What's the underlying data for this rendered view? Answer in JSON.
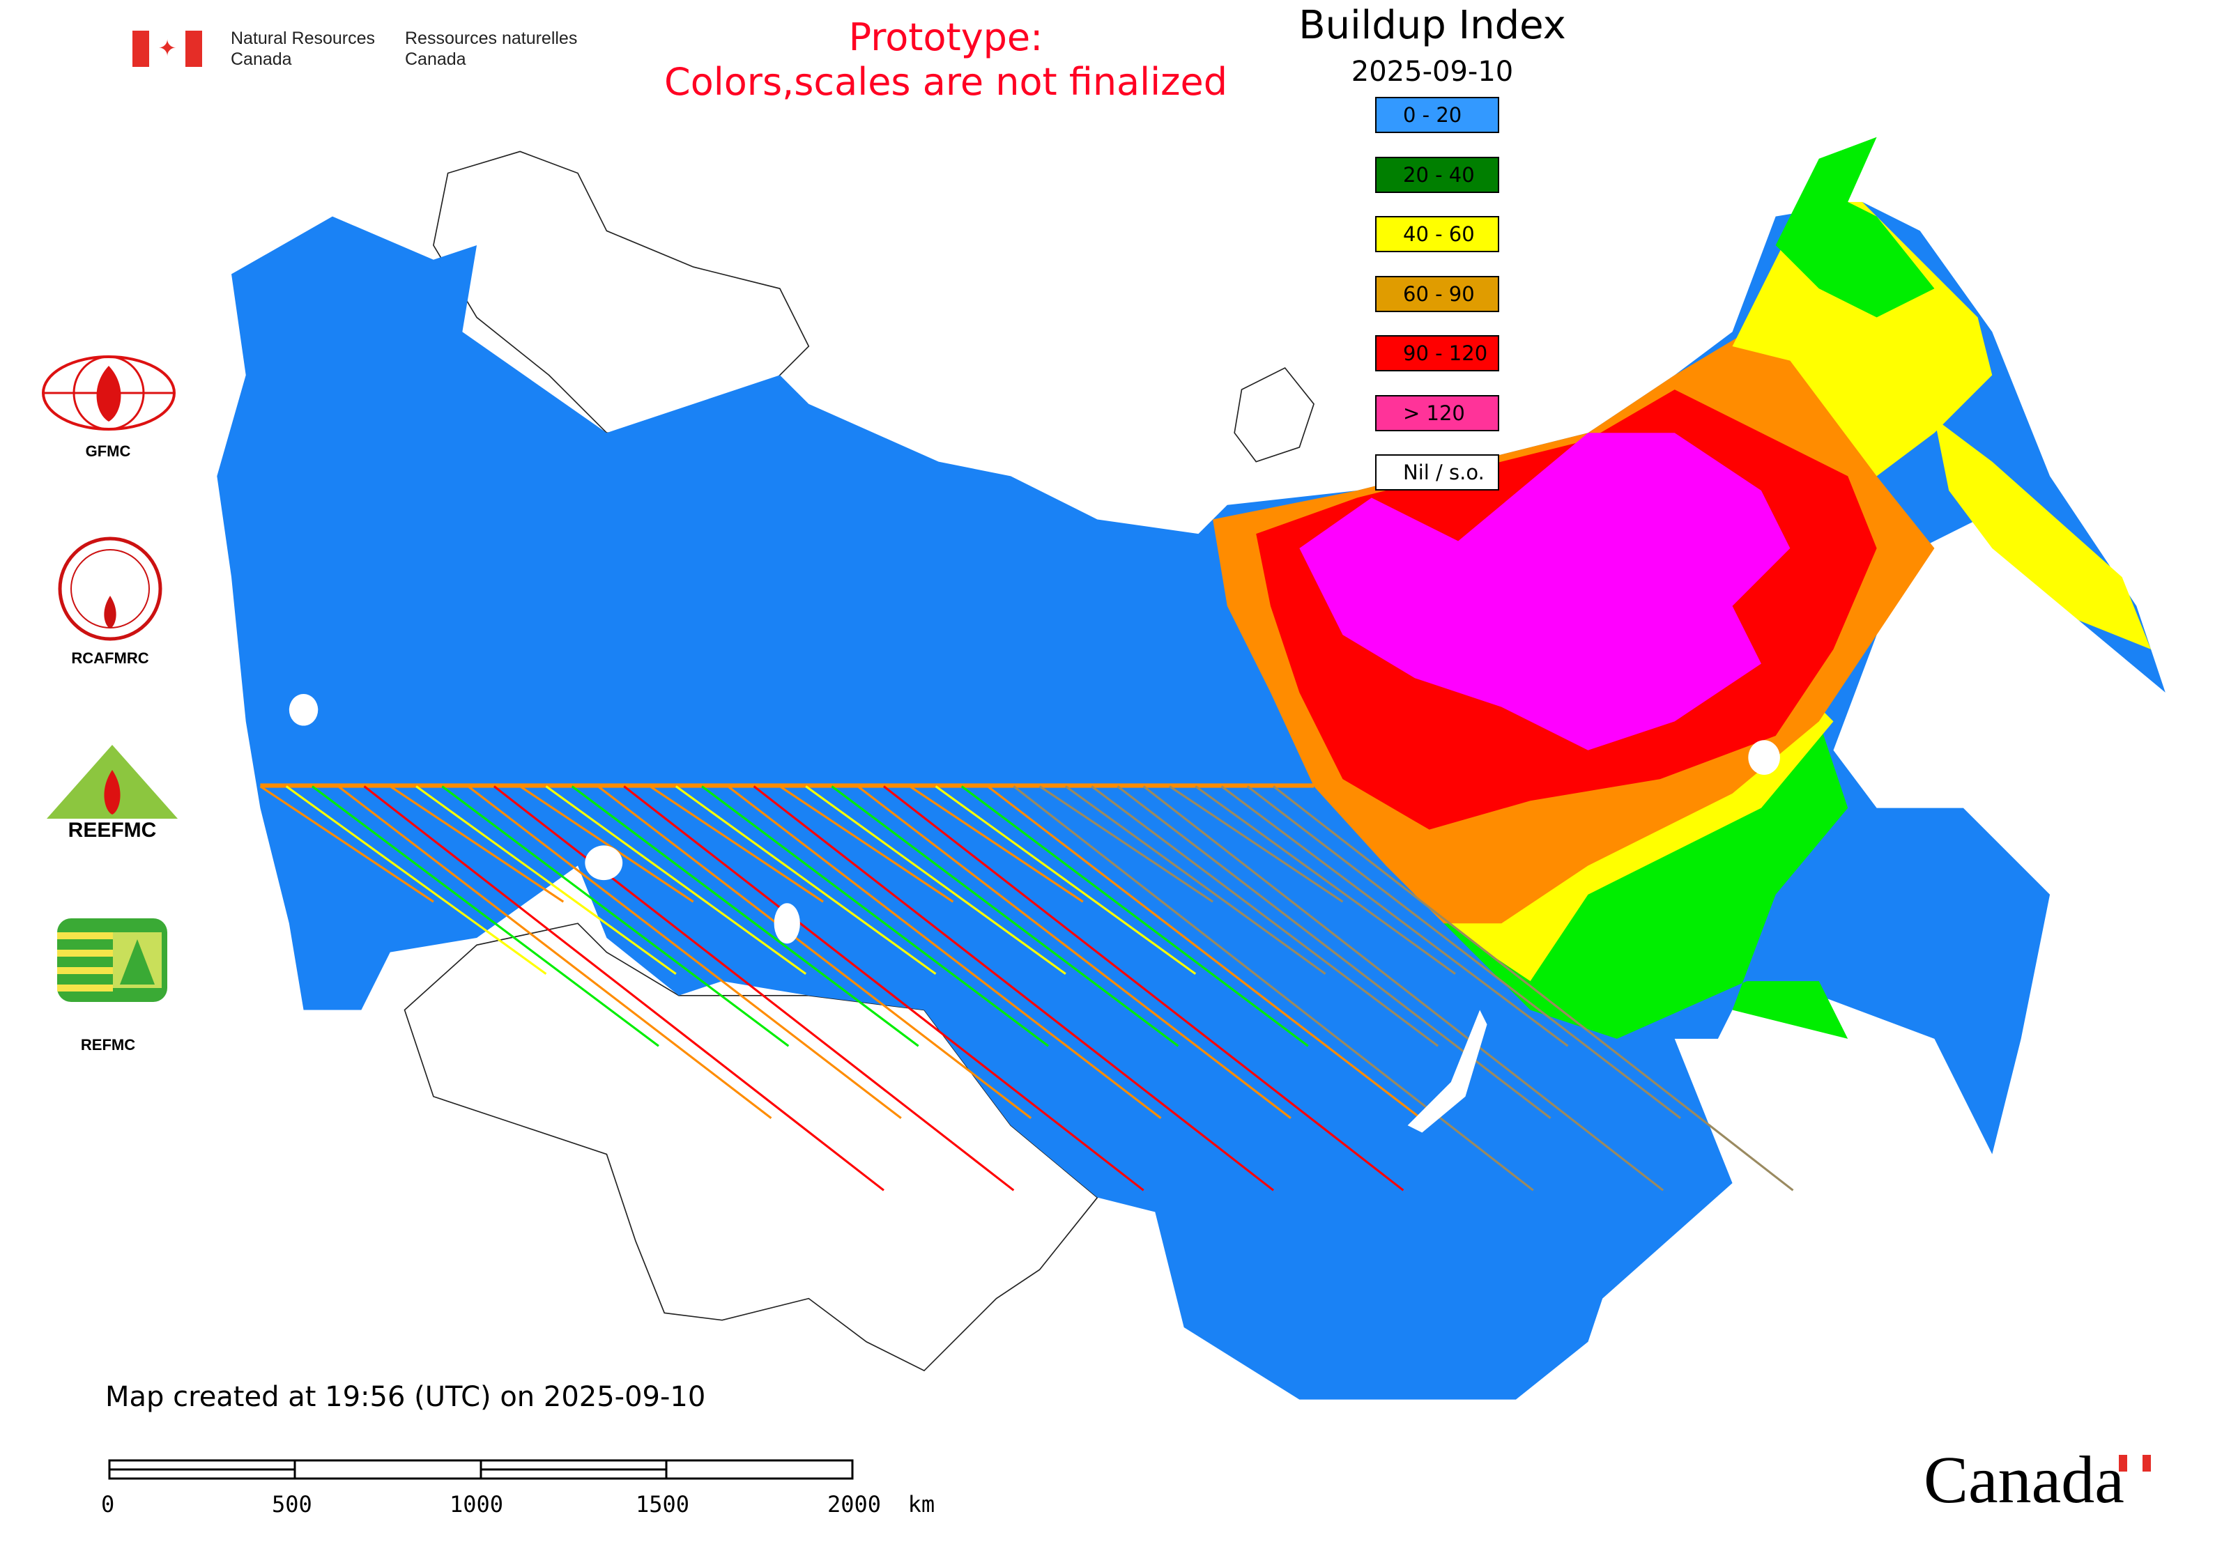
{
  "header": {
    "agency_en": [
      "Natural Resources",
      "Canada"
    ],
    "agency_fr": [
      "Ressources naturelles",
      "Canada"
    ],
    "prototype_notice": [
      "Prototype:",
      "Colors,scales are not finalized"
    ]
  },
  "legend": {
    "title": "Buildup Index",
    "date": "2025-09-10",
    "items": [
      {
        "label": "0 - 20",
        "color": "#3399ff"
      },
      {
        "label": "20 - 40",
        "color": "#007f00"
      },
      {
        "label": "40 - 60",
        "color": "#ffff00"
      },
      {
        "label": "60 - 90",
        "color": "#e09c00"
      },
      {
        "label": "90 - 120",
        "color": "#ff0000"
      },
      {
        "label": "> 120",
        "color": "#ff3399"
      },
      {
        "label": "Nil / s.o.",
        "color": "#ffffff"
      }
    ]
  },
  "logos": [
    {
      "label": "GFMC"
    },
    {
      "label": "RCAFMRC"
    },
    {
      "label": "REEFMC"
    },
    {
      "label": "REFMC"
    }
  ],
  "map_colors": {
    "low": "#1a82f5",
    "moderate": "#00ee00",
    "mid": "#ffff00",
    "high": "#ff8c00",
    "very_high": "#ff0000",
    "extreme": "#ff00ff",
    "flag_red": "#e52d27"
  },
  "footer": {
    "created": "Map created at 19:56 (UTC) on 2025-09-10"
  },
  "scale_bar": {
    "labels": [
      "0",
      "500",
      "1000",
      "1500",
      "2000  km"
    ]
  },
  "wordmark": "Canada"
}
